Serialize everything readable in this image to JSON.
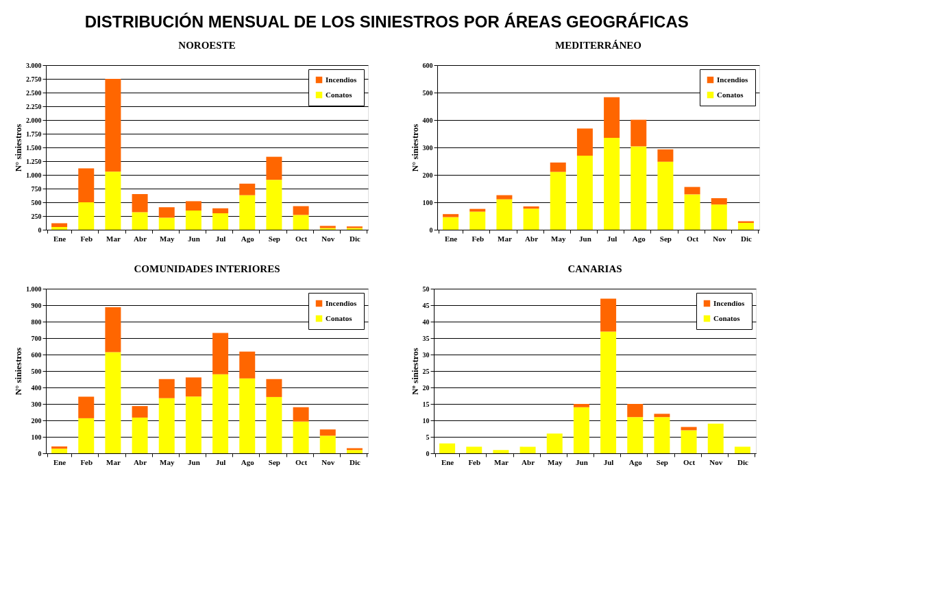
{
  "chart_data": [
    {
      "type": "bar",
      "stacked": true,
      "title": "NOROESTE",
      "annotations": [
        "DISTRIBUCIÓN MENSUAL DE LOS SINIESTROS POR ÁREAS GEOGRÁFICAS"
      ],
      "ylabel": "N° siniestros",
      "categories": [
        "Ene",
        "Feb",
        "Mar",
        "Abr",
        "May",
        "Jun",
        "Jul",
        "Ago",
        "Sep",
        "Oct",
        "Nov",
        "Dic"
      ],
      "series": [
        {
          "name": "Conatos",
          "color": "#ffff00",
          "values": [
            50,
            500,
            1060,
            320,
            220,
            350,
            300,
            630,
            910,
            270,
            30,
            30
          ]
        },
        {
          "name": "Incendios",
          "color": "#ff6600",
          "values": [
            70,
            620,
            1690,
            330,
            190,
            170,
            90,
            210,
            420,
            160,
            40,
            30
          ]
        }
      ],
      "ylim": [
        0,
        3000
      ],
      "yticks": [
        0,
        250,
        500,
        750,
        {
          "value": 1000,
          "label": "1.000"
        },
        {
          "value": 1250,
          "label": "1.250"
        },
        {
          "value": 1500,
          "label": "1.500"
        },
        {
          "value": 1750,
          "label": "1.750"
        },
        {
          "value": 2000,
          "label": "2.000"
        },
        {
          "value": 2250,
          "label": "2.250"
        },
        {
          "value": 2500,
          "label": "2.500"
        },
        {
          "value": 2750,
          "label": "2.750"
        },
        {
          "value": 3000,
          "label": "3.000"
        }
      ],
      "grid": "y",
      "legend": "top right"
    },
    {
      "type": "bar",
      "stacked": true,
      "title": "MEDITERRÁNEO",
      "ylabel": "N° siniestros",
      "categories": [
        "Ene",
        "Feb",
        "Mar",
        "Abr",
        "May",
        "Jun",
        "Jul",
        "Ago",
        "Sep",
        "Oct",
        "Nov",
        "Dic"
      ],
      "series": [
        {
          "name": "Conatos",
          "color": "#ffff00",
          "values": [
            46,
            66,
            111,
            77,
            211,
            270,
            335,
            304,
            248,
            129,
            92,
            25
          ]
        },
        {
          "name": "Incendios",
          "color": "#ff6600",
          "values": [
            11,
            10,
            15,
            8,
            34,
            99,
            148,
            97,
            45,
            27,
            23,
            6
          ]
        }
      ],
      "ylim": [
        0,
        600
      ],
      "yticks": [
        0,
        100,
        200,
        300,
        400,
        500,
        600
      ],
      "grid": "y",
      "legend": "top right"
    },
    {
      "type": "bar",
      "stacked": true,
      "title": "COMUNIDADES INTERIORES",
      "ylabel": "N° siniestros",
      "categories": [
        "Ene",
        "Feb",
        "Mar",
        "Abr",
        "May",
        "Jun",
        "Jul",
        "Ago",
        "Sep",
        "Oct",
        "Nov",
        "Dic"
      ],
      "series": [
        {
          "name": "Conatos",
          "color": "#ffff00",
          "values": [
            28,
            213,
            615,
            217,
            335,
            345,
            480,
            455,
            342,
            193,
            107,
            20
          ]
        },
        {
          "name": "Incendios",
          "color": "#ff6600",
          "values": [
            14,
            131,
            273,
            70,
            116,
            116,
            251,
            163,
            109,
            87,
            38,
            11
          ]
        }
      ],
      "ylim": [
        0,
        1000
      ],
      "yticks": [
        0,
        100,
        200,
        300,
        400,
        500,
        600,
        700,
        800,
        900,
        {
          "value": 1000,
          "label": "1.000"
        }
      ],
      "grid": "y",
      "legend": "top right"
    },
    {
      "type": "bar",
      "stacked": true,
      "title": "CANARIAS",
      "ylabel": "Nº siniestros",
      "categories": [
        "Ene",
        "Feb",
        "Mar",
        "Abr",
        "May",
        "Jun",
        "Jul",
        "Ago",
        "Sep",
        "Oct",
        "Nov",
        "Dic"
      ],
      "series": [
        {
          "name": "Conatos",
          "color": "#ffff00",
          "values": [
            3,
            2,
            1,
            2,
            6,
            14,
            37,
            11,
            11,
            7,
            9,
            2
          ]
        },
        {
          "name": "Incendios",
          "color": "#ff6600",
          "values": [
            0,
            0,
            0,
            0,
            0,
            1,
            10,
            4,
            1,
            1,
            0,
            0
          ]
        }
      ],
      "ylim": [
        0,
        50
      ],
      "yticks": [
        0,
        5,
        10,
        15,
        20,
        25,
        30,
        35,
        40,
        45,
        50
      ],
      "grid": "y",
      "legend": "top right"
    }
  ]
}
